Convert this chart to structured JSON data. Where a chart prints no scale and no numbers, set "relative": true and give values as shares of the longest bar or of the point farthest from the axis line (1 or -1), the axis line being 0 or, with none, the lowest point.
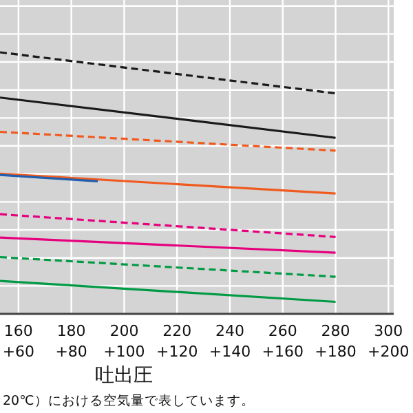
{
  "chart_data": {
    "type": "line",
    "relative": true,
    "xlabel": "吐出圧",
    "annotations": [
      "20℃）における空気量で表しています。"
    ],
    "xlim": [
      153,
      302
    ],
    "xticks": [
      160,
      180,
      200,
      220,
      240,
      260,
      280,
      300
    ],
    "x2lim": [
      53,
      202
    ],
    "x2ticks": [
      {
        "value": 60,
        "label": "+60"
      },
      {
        "value": 80,
        "label": "+80"
      },
      {
        "value": 100,
        "label": "+100"
      },
      {
        "value": 120,
        "label": "+120"
      },
      {
        "value": 140,
        "label": "+140"
      },
      {
        "value": 160,
        "label": "+160"
      },
      {
        "value": 180,
        "label": "+180"
      },
      {
        "value": 200,
        "label": "+200"
      }
    ],
    "grid": true,
    "series": [
      {
        "color": "#1a1a1a",
        "line_style": "dashed",
        "x": [
          153,
          280
        ],
        "values": [
          1,
          0.843
        ]
      },
      {
        "color": "#1a1a1a",
        "line_style": "solid",
        "x": [
          153,
          280
        ],
        "values": [
          0.827,
          0.673
        ]
      },
      {
        "color": "#f05a1e",
        "line_style": "dashed",
        "x": [
          153,
          280
        ],
        "values": [
          0.696,
          0.624
        ]
      },
      {
        "color": "#f05a1e",
        "line_style": "solid",
        "x": [
          153,
          280
        ],
        "values": [
          0.536,
          0.46
        ]
      },
      {
        "color": "#1f5fb0",
        "line_style": "solid",
        "x": [
          153,
          190
        ],
        "values": [
          0.531,
          0.507
        ]
      },
      {
        "color": "#e6007e",
        "line_style": "dashed",
        "x": [
          153,
          280
        ],
        "values": [
          0.381,
          0.294
        ]
      },
      {
        "color": "#e6007e",
        "line_style": "solid",
        "x": [
          153,
          280
        ],
        "values": [
          0.292,
          0.234
        ]
      },
      {
        "color": "#009a44",
        "line_style": "dashed",
        "x": [
          153,
          280
        ],
        "values": [
          0.217,
          0.142
        ]
      },
      {
        "color": "#009a44",
        "line_style": "solid",
        "x": [
          153,
          280
        ],
        "values": [
          0.126,
          0.046
        ]
      }
    ]
  }
}
